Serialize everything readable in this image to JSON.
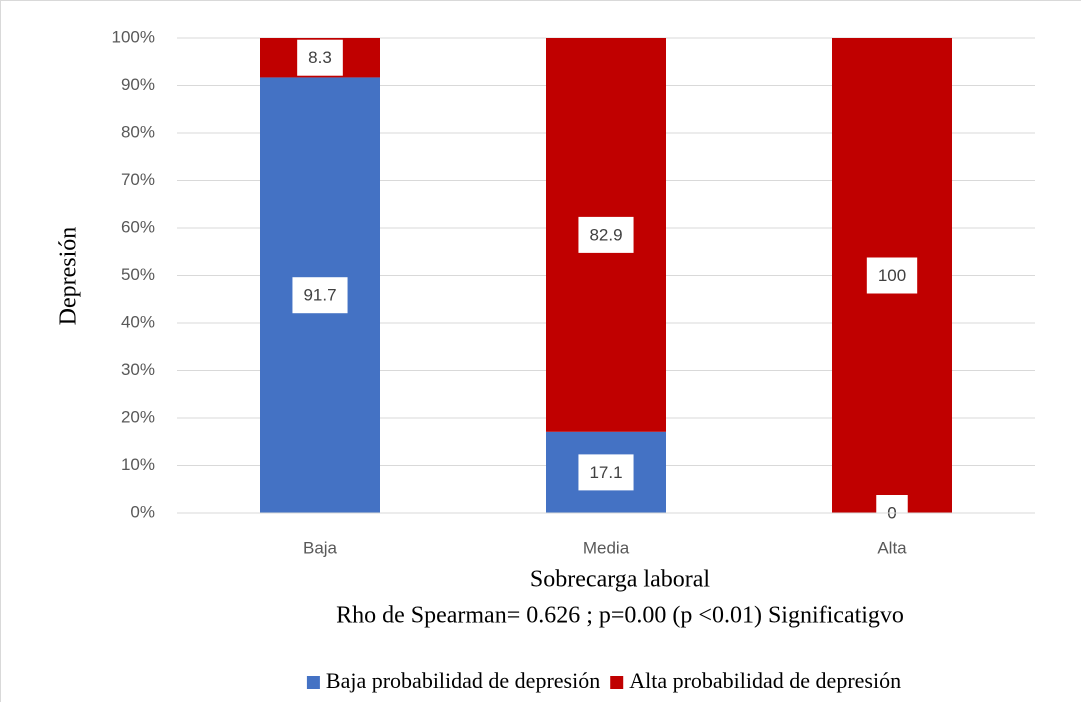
{
  "chart_data": {
    "type": "stacked_bar",
    "categories": [
      "Baja",
      "Media",
      "Alta"
    ],
    "series": [
      {
        "name": "Baja probabilidad de depresión",
        "color": "#4472c4",
        "values": [
          91.7,
          17.1,
          0
        ]
      },
      {
        "name": "Alta probabilidad de depresión",
        "color": "#c00000",
        "values": [
          8.3,
          82.9,
          100
        ]
      }
    ],
    "ylim": [
      0,
      100
    ],
    "yticks": [
      {
        "value": 0,
        "label": "0%"
      },
      {
        "value": 10,
        "label": "10%"
      },
      {
        "value": 20,
        "label": "20%"
      },
      {
        "value": 30,
        "label": "30%"
      },
      {
        "value": 40,
        "label": "40%"
      },
      {
        "value": 50,
        "label": "50%"
      },
      {
        "value": 60,
        "label": "60%"
      },
      {
        "value": 70,
        "label": "70%"
      },
      {
        "value": 80,
        "label": "80%"
      },
      {
        "value": 90,
        "label": "90%"
      },
      {
        "value": 100,
        "label": "100%"
      }
    ],
    "grid": true,
    "y_label": "Depresión",
    "x_label": "Sobrecarga laboral",
    "annotation": "Rho de Spearman= 0.626 ; p=0.00 (p <0.01) Significatigvo",
    "legend": "bottom"
  }
}
